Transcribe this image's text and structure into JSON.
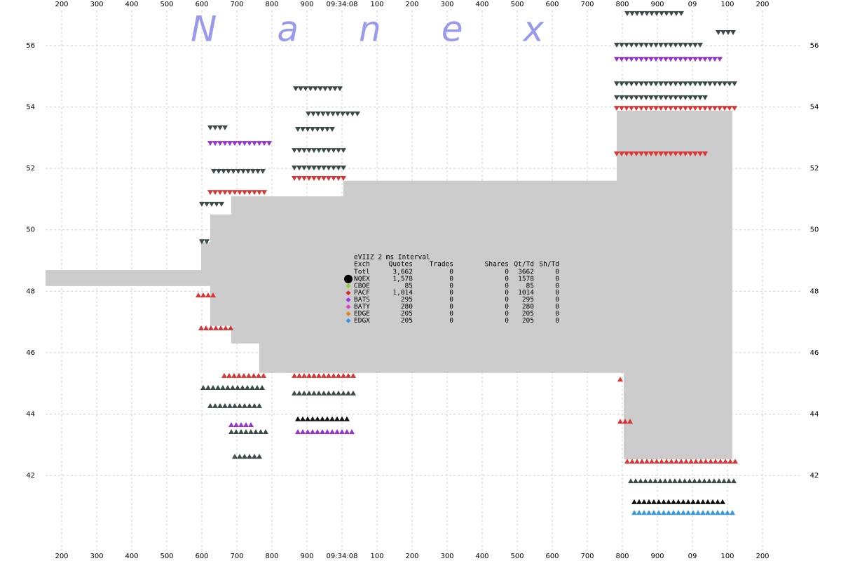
{
  "chart_data": {
    "type": "quote_spread",
    "watermark": "Nanex",
    "xlim": [
      154,
      2314
    ],
    "ylim": [
      39.56,
      57.14
    ],
    "grid": true,
    "yticks": [
      42,
      44,
      46,
      48,
      50,
      52,
      54,
      56
    ],
    "xticks": [
      200,
      300,
      400,
      500,
      600,
      700,
      800,
      900,
      {
        "value": 1000,
        "label": "09:34:08"
      },
      {
        "value": 1100,
        "label": "100"
      },
      {
        "value": 1200,
        "label": "200"
      },
      {
        "value": 1300,
        "label": "300"
      },
      {
        "value": 1400,
        "label": "400"
      },
      {
        "value": 1500,
        "label": "500"
      },
      {
        "value": 1600,
        "label": "600"
      },
      {
        "value": 1700,
        "label": "700"
      },
      {
        "value": 1800,
        "label": "800"
      },
      {
        "value": 1900,
        "label": "900"
      },
      {
        "value": 2000,
        "label": "09"
      },
      {
        "value": 2100,
        "label": "100"
      },
      {
        "value": 2200,
        "label": "200"
      }
    ],
    "spread": {
      "color": "#cccccc",
      "x": [
        154,
        598,
        624,
        684,
        764,
        1004,
        1784,
        1804,
        2114
      ],
      "upper": [
        48.69,
        49.6,
        50.5,
        51.09,
        51.09,
        51.6,
        53.88,
        53.88,
        53.88
      ],
      "lower": [
        48.17,
        48.17,
        46.87,
        46.3,
        45.34,
        45.34,
        45.34,
        42.53,
        42.53
      ]
    },
    "quotes": [
      {
        "x": [
          624,
          674
        ],
        "y": 53.31,
        "color": "#3c4a4a",
        "dir": "down"
      },
      {
        "x": [
          624,
          794
        ],
        "y": 52.8,
        "color": "#9933cc",
        "dir": "down"
      },
      {
        "x": [
          634,
          780
        ],
        "y": 51.89,
        "color": "#3c4a4a",
        "dir": "down"
      },
      {
        "x": [
          624,
          780
        ],
        "y": 51.2,
        "color": "#dd3333",
        "dir": "down"
      },
      {
        "x": [
          600,
          664
        ],
        "y": 50.82,
        "color": "#3c4a4a",
        "dir": "down"
      },
      {
        "x": [
          600,
          624
        ],
        "y": 49.6,
        "color": "#3c4a4a",
        "dir": "down"
      },
      {
        "x": [
          590,
          644
        ],
        "y": 47.89,
        "color": "#dd3333",
        "dir": "up"
      },
      {
        "x": [
          598,
          684
        ],
        "y": 46.82,
        "color": "#dd3333",
        "dir": "up"
      },
      {
        "x": [
          664,
          784
        ],
        "y": 45.27,
        "color": "#dd3333",
        "dir": "up"
      },
      {
        "x": [
          604,
          784
        ],
        "y": 44.88,
        "color": "#3c4a4a",
        "dir": "up"
      },
      {
        "x": [
          624,
          764
        ],
        "y": 44.29,
        "color": "#3c4a4a",
        "dir": "up"
      },
      {
        "x": [
          684,
          744
        ],
        "y": 43.67,
        "color": "#9933cc",
        "dir": "up"
      },
      {
        "x": [
          684,
          794
        ],
        "y": 43.44,
        "color": "#3c4a4a",
        "dir": "up"
      },
      {
        "x": [
          694,
          774
        ],
        "y": 42.64,
        "color": "#3c4a4a",
        "dir": "up"
      },
      {
        "x": [
          868,
          1004
        ],
        "y": 54.58,
        "color": "#3c4a4a",
        "dir": "down"
      },
      {
        "x": [
          904,
          1044
        ],
        "y": 53.76,
        "color": "#3c4a4a",
        "dir": "down"
      },
      {
        "x": [
          874,
          974
        ],
        "y": 53.26,
        "color": "#3c4a4a",
        "dir": "down"
      },
      {
        "x": [
          864,
          1004
        ],
        "y": 52.57,
        "color": "#3c4a4a",
        "dir": "down"
      },
      {
        "x": [
          864,
          1014
        ],
        "y": 52.0,
        "color": "#3c4a4a",
        "dir": "down"
      },
      {
        "x": [
          864,
          1004
        ],
        "y": 51.66,
        "color": "#dd3333",
        "dir": "down"
      },
      {
        "x": [
          864,
          1034
        ],
        "y": 45.27,
        "color": "#dd3333",
        "dir": "up"
      },
      {
        "x": [
          864,
          1044
        ],
        "y": 44.7,
        "color": "#3c4a4a",
        "dir": "up"
      },
      {
        "x": [
          874,
          1014
        ],
        "y": 43.86,
        "color": "#111111",
        "dir": "up"
      },
      {
        "x": [
          874,
          1034
        ],
        "y": 43.44,
        "color": "#9933cc",
        "dir": "up"
      },
      {
        "x": [
          1814,
          1974
        ],
        "y": 57.03,
        "color": "#3c4a4a",
        "dir": "down"
      },
      {
        "x": [
          2074,
          2124
        ],
        "y": 56.41,
        "color": "#3c4a4a",
        "dir": "down"
      },
      {
        "x": [
          1784,
          2024
        ],
        "y": 56.0,
        "color": "#3c4a4a",
        "dir": "down"
      },
      {
        "x": [
          1784,
          2084
        ],
        "y": 55.54,
        "color": "#9933cc",
        "dir": "down"
      },
      {
        "x": [
          1784,
          2124
        ],
        "y": 54.74,
        "color": "#3c4a4a",
        "dir": "down"
      },
      {
        "x": [
          1784,
          2044
        ],
        "y": 54.29,
        "color": "#3c4a4a",
        "dir": "down"
      },
      {
        "x": [
          1784,
          2124
        ],
        "y": 53.94,
        "color": "#dd3333",
        "dir": "down"
      },
      {
        "x": [
          1784,
          2044
        ],
        "y": 52.46,
        "color": "#dd3333",
        "dir": "down"
      },
      {
        "x": [
          1794,
          1804
        ],
        "y": 45.15,
        "color": "#dd3333",
        "dir": "up"
      },
      {
        "x": [
          1794,
          1834
        ],
        "y": 43.78,
        "color": "#dd3333",
        "dir": "up"
      },
      {
        "x": [
          1814,
          2124
        ],
        "y": 42.48,
        "color": "#dd3333",
        "dir": "up"
      },
      {
        "x": [
          1824,
          2124
        ],
        "y": 41.84,
        "color": "#3c4a4a",
        "dir": "up"
      },
      {
        "x": [
          1834,
          2094
        ],
        "y": 41.16,
        "color": "#111111",
        "dir": "up"
      },
      {
        "x": [
          1834,
          2124
        ],
        "y": 40.81,
        "color": "#3399dd",
        "dir": "up"
      }
    ],
    "stats": {
      "title": "eVIIZ 2 ms Interval",
      "columns": [
        "Exch",
        "Quotes",
        "Trades",
        "Shares",
        "Qt/Td",
        "Sh/Td"
      ],
      "rows": [
        {
          "cells": [
            "Totl",
            "3,662",
            0,
            0,
            3662,
            0
          ]
        },
        {
          "cells": [
            "NQEX",
            "1,578",
            0,
            0,
            1578,
            0
          ],
          "color": "#000000",
          "marker": "circle"
        },
        {
          "cells": [
            "CBOE",
            85,
            0,
            0,
            85,
            0
          ],
          "color": "#99cc33",
          "marker": "diamond"
        },
        {
          "cells": [
            "PACF",
            "1,014",
            0,
            0,
            1014,
            0
          ],
          "color": "#dd2222",
          "marker": "diamond"
        },
        {
          "cells": [
            "BATS",
            295,
            0,
            0,
            295,
            0
          ],
          "color": "#9933ee",
          "marker": "diamond"
        },
        {
          "cells": [
            "BATY",
            280,
            0,
            0,
            280,
            0
          ],
          "color": "#dd44cc",
          "marker": "diamond"
        },
        {
          "cells": [
            "EDGE",
            205,
            0,
            0,
            205,
            0
          ],
          "color": "#dd8822",
          "marker": "diamond"
        },
        {
          "cells": [
            "EDGX",
            205,
            0,
            0,
            205,
            0
          ],
          "color": "#3399ee",
          "marker": "diamond"
        }
      ]
    }
  }
}
